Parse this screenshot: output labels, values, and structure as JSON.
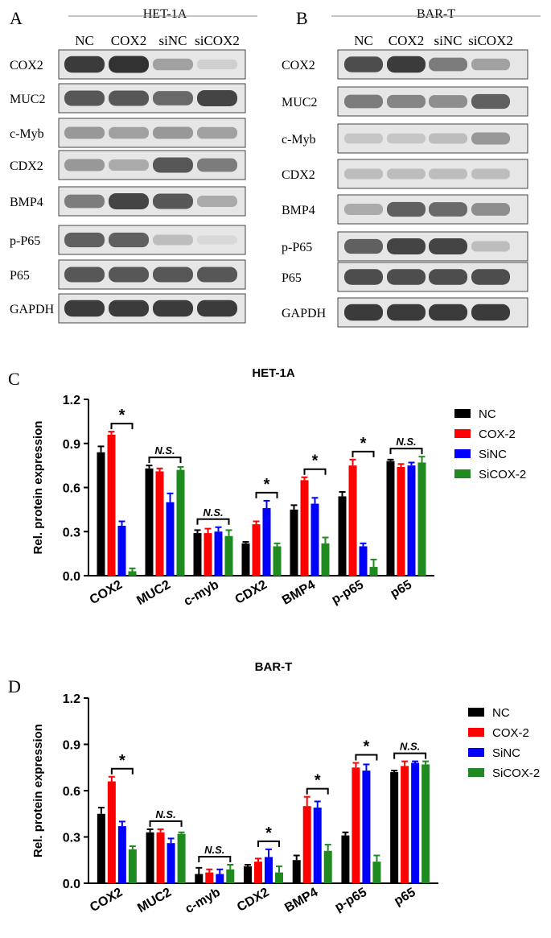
{
  "panels": {
    "A": "A",
    "B": "B",
    "C": "C",
    "D": "D"
  },
  "blots": [
    {
      "cell_line": "HET-1A",
      "lanes": [
        "NC",
        "COX2",
        "siNC",
        "siCOX2"
      ],
      "proteins": [
        "COX2",
        "MUC2",
        "c-Myb",
        "CDX2",
        "BMP4",
        "p-P65",
        "P65",
        "GAPDH"
      ],
      "intensity": [
        [
          0.9,
          0.95,
          0.35,
          0.1
        ],
        [
          0.75,
          0.75,
          0.65,
          0.85
        ],
        [
          0.4,
          0.35,
          0.4,
          0.35
        ],
        [
          0.4,
          0.3,
          0.75,
          0.55
        ],
        [
          0.55,
          0.85,
          0.75,
          0.3
        ],
        [
          0.7,
          0.7,
          0.2,
          0.05
        ],
        [
          0.75,
          0.75,
          0.75,
          0.75
        ],
        [
          0.9,
          0.9,
          0.9,
          0.9
        ]
      ]
    },
    {
      "cell_line": "BAR-T",
      "lanes": [
        "NC",
        "COX2",
        "siNC",
        "siCOX2"
      ],
      "proteins": [
        "COX2",
        "MUC2",
        "c-Myb",
        "CDX2",
        "BMP4",
        "p-P65",
        "P65",
        "GAPDH"
      ],
      "intensity": [
        [
          0.8,
          0.9,
          0.55,
          0.35
        ],
        [
          0.55,
          0.5,
          0.45,
          0.7
        ],
        [
          0.15,
          0.15,
          0.2,
          0.4
        ],
        [
          0.2,
          0.2,
          0.2,
          0.2
        ],
        [
          0.3,
          0.7,
          0.65,
          0.45
        ],
        [
          0.7,
          0.85,
          0.85,
          0.2
        ],
        [
          0.8,
          0.8,
          0.8,
          0.8
        ],
        [
          0.9,
          0.9,
          0.9,
          0.9
        ]
      ]
    }
  ],
  "chart_data": [
    {
      "type": "bar",
      "title": "HET-1A",
      "ylabel": "Rel. protein expression",
      "ylim": [
        0,
        1.2
      ],
      "yticks": [
        "0.0",
        "0.3",
        "0.6",
        "0.9",
        "1.2"
      ],
      "categories": [
        "COX2",
        "MUC2",
        "c-myb",
        "CDX2",
        "BMP4",
        "p-p65",
        "p65"
      ],
      "series": [
        {
          "name": "NC",
          "color": "#000000",
          "values": [
            0.84,
            0.73,
            0.29,
            0.22,
            0.45,
            0.54,
            0.78
          ],
          "errors": [
            0.04,
            0.02,
            0.02,
            0.01,
            0.03,
            0.03,
            0.01
          ]
        },
        {
          "name": "COX-2",
          "color": "#ff0000",
          "values": [
            0.96,
            0.71,
            0.29,
            0.35,
            0.65,
            0.75,
            0.74
          ],
          "errors": [
            0.02,
            0.02,
            0.03,
            0.02,
            0.02,
            0.04,
            0.02
          ]
        },
        {
          "name": "SiNC",
          "color": "#0000ff",
          "values": [
            0.34,
            0.5,
            0.3,
            0.46,
            0.49,
            0.2,
            0.75
          ],
          "errors": [
            0.03,
            0.06,
            0.03,
            0.05,
            0.04,
            0.02,
            0.02
          ]
        },
        {
          "name": "SiCOX-2",
          "color": "#1f8a1f",
          "values": [
            0.03,
            0.72,
            0.27,
            0.2,
            0.22,
            0.06,
            0.77
          ],
          "errors": [
            0.02,
            0.02,
            0.04,
            0.02,
            0.04,
            0.05,
            0.04
          ]
        }
      ],
      "annotations": [
        "*",
        "N.S.",
        "N.S.",
        "*",
        "*",
        "*",
        "N.S."
      ]
    },
    {
      "type": "bar",
      "title": "BAR-T",
      "ylabel": "Rel. protein expression",
      "ylim": [
        0,
        1.2
      ],
      "yticks": [
        "0.0",
        "0.3",
        "0.6",
        "0.9",
        "1.2"
      ],
      "categories": [
        "COX2",
        "MUC2",
        "c-myb",
        "CDX2",
        "BMP4",
        "p-p65",
        "p65"
      ],
      "series": [
        {
          "name": "NC",
          "color": "#000000",
          "values": [
            0.45,
            0.33,
            0.06,
            0.11,
            0.15,
            0.31,
            0.72
          ],
          "errors": [
            0.04,
            0.02,
            0.04,
            0.01,
            0.03,
            0.02,
            0.01
          ]
        },
        {
          "name": "COX-2",
          "color": "#ff0000",
          "values": [
            0.66,
            0.33,
            0.07,
            0.14,
            0.5,
            0.75,
            0.76
          ],
          "errors": [
            0.03,
            0.02,
            0.02,
            0.02,
            0.06,
            0.03,
            0.03
          ]
        },
        {
          "name": "SiNC",
          "color": "#0000ff",
          "values": [
            0.37,
            0.26,
            0.06,
            0.17,
            0.49,
            0.73,
            0.78
          ],
          "errors": [
            0.03,
            0.03,
            0.03,
            0.05,
            0.04,
            0.04,
            0.01
          ]
        },
        {
          "name": "SiCOX-2",
          "color": "#1f8a1f",
          "values": [
            0.22,
            0.32,
            0.09,
            0.07,
            0.21,
            0.14,
            0.77
          ],
          "errors": [
            0.02,
            0.01,
            0.03,
            0.04,
            0.04,
            0.04,
            0.02
          ]
        }
      ],
      "annotations": [
        "*",
        "N.S.",
        "N.S.",
        "*",
        "*",
        "*",
        "N.S."
      ]
    }
  ]
}
